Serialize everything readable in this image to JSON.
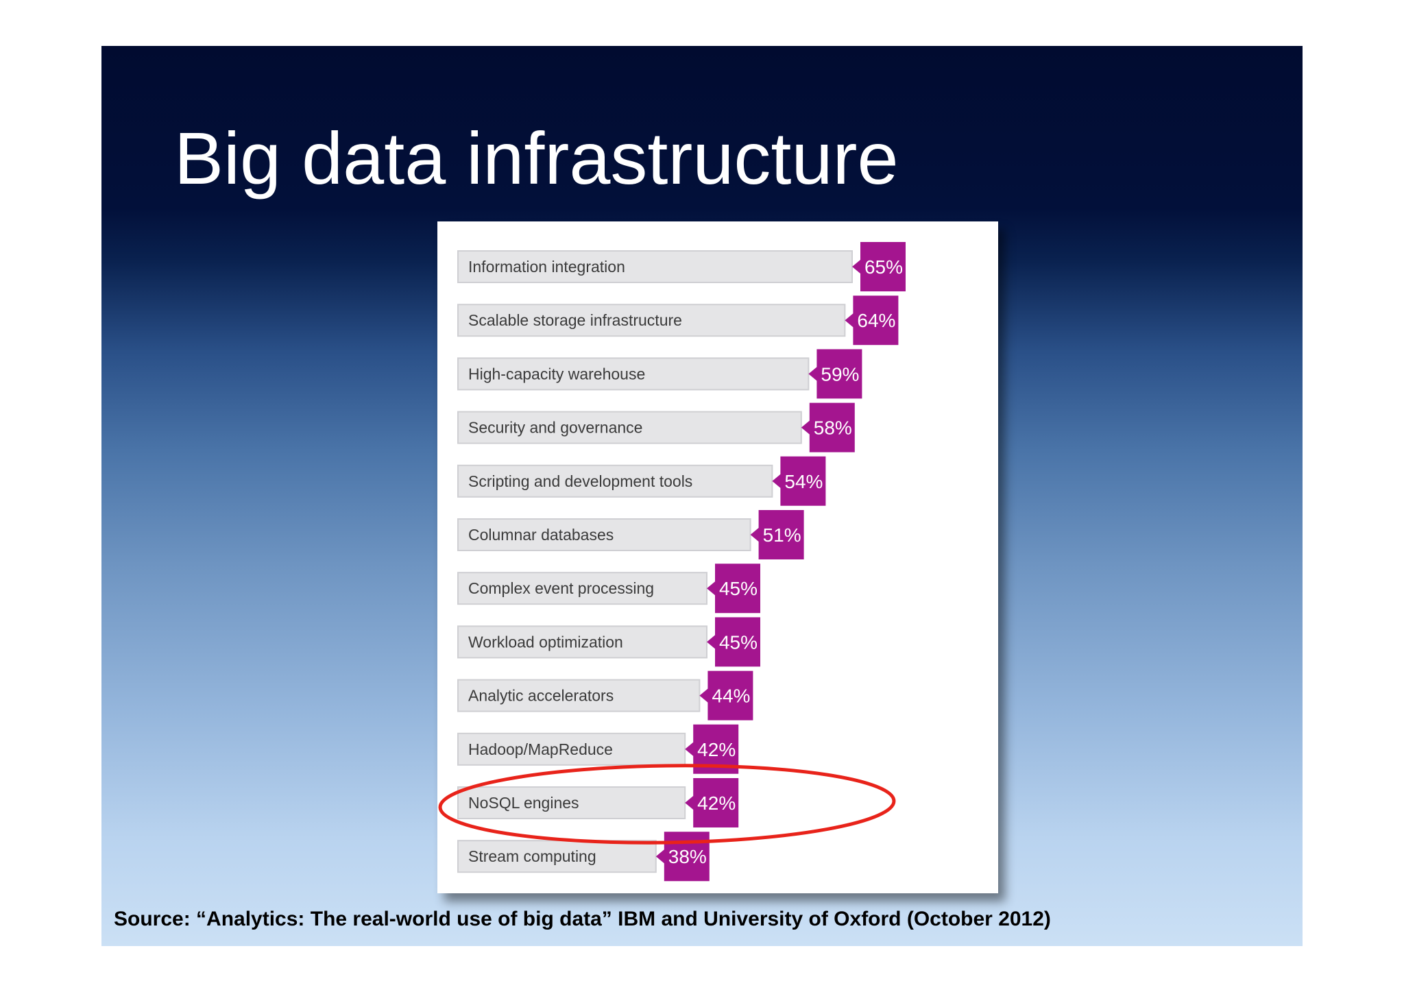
{
  "slide": {
    "title": "Big data infrastructure",
    "source": "Source: “Analytics: The real-world use of big data” IBM and University of Oxford (October 2012)"
  },
  "colors": {
    "bar": "#e5e5e7",
    "bar_border": "#cfcfd3",
    "tag": "#a4158f",
    "highlight_ring": "#e8231a"
  },
  "chart_data": {
    "type": "bar",
    "orientation": "horizontal",
    "categories": [
      "Information integration",
      "Scalable storage infrastructure",
      "High-capacity warehouse",
      "Security and governance",
      "Scripting and development tools",
      "Columnar databases",
      "Complex event processing",
      "Workload optimization",
      "Analytic accelerators",
      "Hadoop/MapReduce",
      "NoSQL engines",
      "Stream computing"
    ],
    "values": [
      65,
      64,
      59,
      58,
      54,
      51,
      45,
      45,
      44,
      42,
      42,
      38
    ],
    "value_labels": [
      "65%",
      "64%",
      "59%",
      "58%",
      "54%",
      "51%",
      "45%",
      "45%",
      "44%",
      "42%",
      "42%",
      "38%"
    ],
    "unit": "%",
    "highlighted_category": "NoSQL engines"
  }
}
